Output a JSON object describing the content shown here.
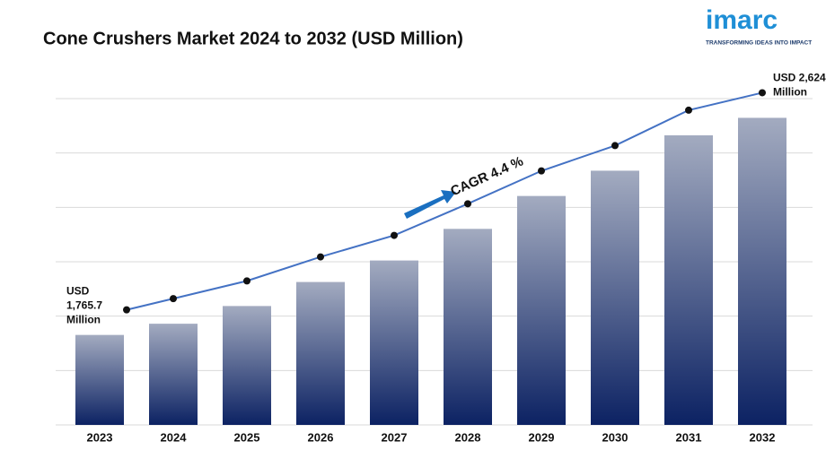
{
  "chart_data": {
    "type": "bar",
    "title": "Cone Crushers Market 2024 to 2032 (USD Million)",
    "categories": [
      "2023",
      "2024",
      "2025",
      "2026",
      "2027",
      "2028",
      "2029",
      "2030",
      "2031",
      "2032"
    ],
    "values": [
      1765.7,
      1810,
      1880,
      1975,
      2060,
      2185,
      2315,
      2415,
      2555,
      2624.0
    ],
    "value_labels": [
      "USD 1,765.7 Million",
      null,
      null,
      null,
      null,
      null,
      null,
      null,
      null,
      "USD 2,624.0 Million"
    ],
    "color": "#0d2466",
    "line_color": "#4472c4",
    "ylim": [
      1410,
      2700
    ],
    "annotation": "CAGR 4.4 %",
    "logo": {
      "name": "imarc",
      "tagline": "TRANSFORMING IDEAS INTO IMPACT"
    }
  }
}
